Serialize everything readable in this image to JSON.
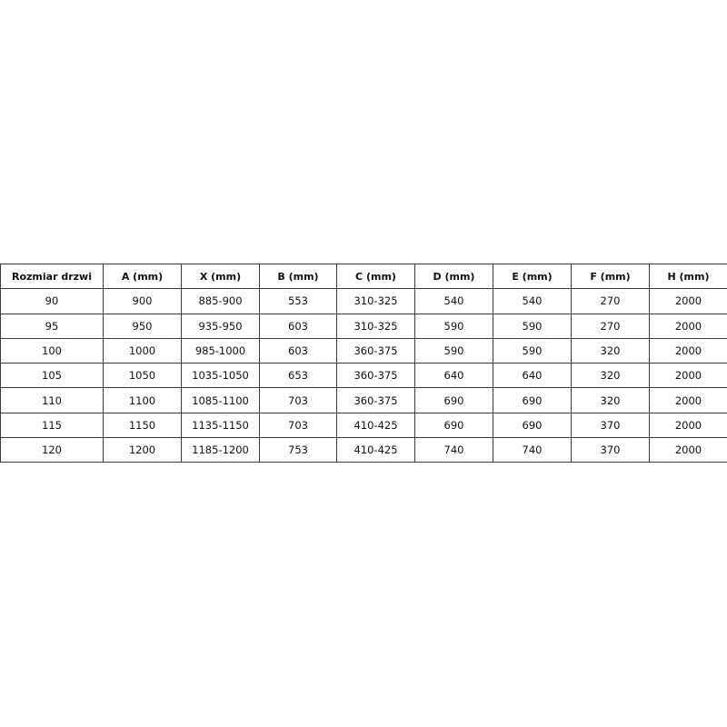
{
  "table": {
    "headers": [
      "Rozmiar drzwi",
      "A (mm)",
      "X (mm)",
      "B (mm)",
      "C (mm)",
      "D (mm)",
      "E (mm)",
      "F (mm)",
      "H (mm)"
    ],
    "rows": [
      [
        "90",
        "900",
        "885-900",
        "553",
        "310-325",
        "540",
        "540",
        "270",
        "2000"
      ],
      [
        "95",
        "950",
        "935-950",
        "603",
        "310-325",
        "590",
        "590",
        "270",
        "2000"
      ],
      [
        "100",
        "1000",
        "985-1000",
        "603",
        "360-375",
        "590",
        "590",
        "320",
        "2000"
      ],
      [
        "105",
        "1050",
        "1035-1050",
        "653",
        "360-375",
        "640",
        "640",
        "320",
        "2000"
      ],
      [
        "110",
        "1100",
        "1085-1100",
        "703",
        "360-375",
        "690",
        "690",
        "320",
        "2000"
      ],
      [
        "115",
        "1150",
        "1135-1150",
        "703",
        "410-425",
        "690",
        "690",
        "370",
        "2000"
      ],
      [
        "120",
        "1200",
        "1185-1200",
        "753",
        "410-425",
        "740",
        "740",
        "370",
        "2000"
      ]
    ]
  }
}
